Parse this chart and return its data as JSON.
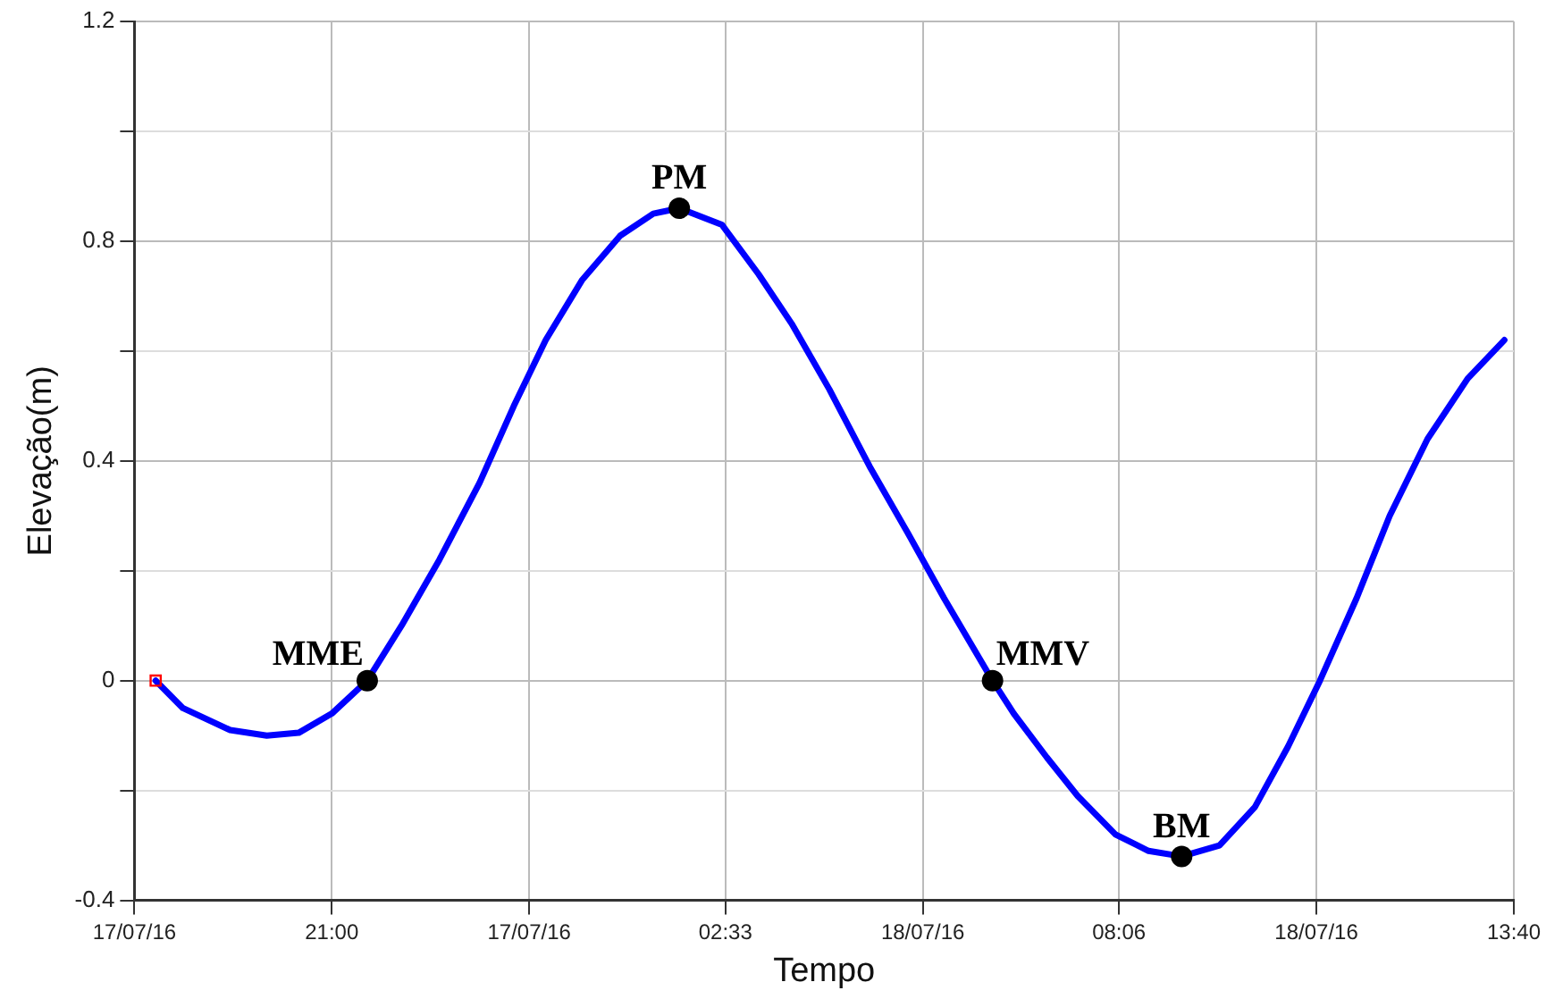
{
  "chart_data": {
    "type": "line",
    "xlabel": "Tempo",
    "ylabel": "Elevação(m)",
    "xlim": [
      "--07-17T18:13",
      "--07-18T13:40"
    ],
    "ylim": [
      -0.4,
      1.2
    ],
    "xticks": [
      {
        "value": "--07-17T18:13",
        "label": "17/07/16"
      },
      {
        "value": "--07-17T21:00",
        "label": "21:00"
      },
      {
        "value": "--07-17T23:47",
        "label": "17/07/16"
      },
      {
        "value": "--07-18T02:33",
        "label": "02:33"
      },
      {
        "value": "--07-18T05:20",
        "label": "18/07/16"
      },
      {
        "value": "--07-18T08:06",
        "label": "08:06"
      },
      {
        "value": "--07-18T10:53",
        "label": "18/07/16"
      },
      {
        "value": "--07-18T13:40",
        "label": "13:40"
      }
    ],
    "yticks": [
      {
        "value": -0.4,
        "label": "-0.4"
      },
      {
        "value": -0.2,
        "label": null
      },
      0,
      {
        "value": 0.2,
        "label": null
      },
      0.4,
      {
        "value": 0.6,
        "label": null
      },
      0.8,
      {
        "value": 1.0,
        "label": null
      },
      1.2
    ],
    "grid": true,
    "legend": false,
    "line_style": "solid",
    "marker": "none",
    "series": [
      {
        "color": "#0000ff",
        "x": [
          "--07-17T18:31",
          "--07-17T18:54",
          "--07-17T19:34",
          "--07-17T20:05",
          "--07-17T20:32",
          "--07-17T21:00",
          "--07-17T21:30",
          "--07-17T21:59",
          "--07-17T22:31",
          "--07-17T23:05",
          "--07-17T23:34",
          "--07-18T00:01",
          "--07-18T00:32",
          "--07-18T01:04",
          "--07-18T01:32",
          "--07-18T01:54",
          "--07-18T02:30",
          "--07-18T03:01",
          "--07-18T03:29",
          "--07-18T04:01",
          "--07-18T04:35",
          "--07-18T05:07",
          "--07-18T05:38",
          "--07-18T06:19",
          "--07-18T06:37",
          "--07-18T07:05",
          "--07-18T07:31",
          "--07-18T08:03",
          "--07-18T08:31",
          "--07-18T08:59",
          "--07-18T09:31",
          "--07-18T10:01",
          "--07-18T10:29",
          "--07-18T10:56",
          "--07-18T11:27",
          "--07-18T11:55",
          "--07-18T12:27",
          "--07-18T13:01",
          "--07-18T13:32"
        ],
        "values": [
          0,
          -0.05,
          -0.09,
          -0.1,
          -0.095,
          -0.06,
          0,
          0.1,
          0.22,
          0.36,
          0.5,
          0.62,
          0.73,
          0.81,
          0.85,
          0.86,
          0.83,
          0.74,
          0.65,
          0.53,
          0.39,
          0.27,
          0.15,
          0,
          -0.06,
          -0.14,
          -0.21,
          -0.28,
          -0.31,
          -0.32,
          -0.3,
          -0.23,
          -0.12,
          0,
          0.15,
          0.3,
          0.44,
          0.55,
          0.62
        ]
      },
      {
        "type": "scatter",
        "marker": "square",
        "color": "#ff0000",
        "x": [
          "--07-17T18:31"
        ],
        "values": [
          0
        ]
      },
      {
        "type": "scatter",
        "marker": "circle",
        "color": "#000000",
        "x": [
          "--07-17T21:30",
          "--07-18T01:54",
          "--07-18T06:19",
          "--07-18T08:59"
        ],
        "values": [
          0,
          0.86,
          0,
          -0.32
        ]
      }
    ],
    "annotations": [
      {
        "text": "MME",
        "x": "--07-17T21:30",
        "y": 0
      },
      {
        "text": "PM",
        "x": "--07-18T01:54",
        "y": 0.86
      },
      {
        "text": "MMV",
        "x": "--07-18T06:19",
        "y": 0
      },
      {
        "text": "BM",
        "x": "--07-18T08:59",
        "y": -0.32
      }
    ]
  }
}
